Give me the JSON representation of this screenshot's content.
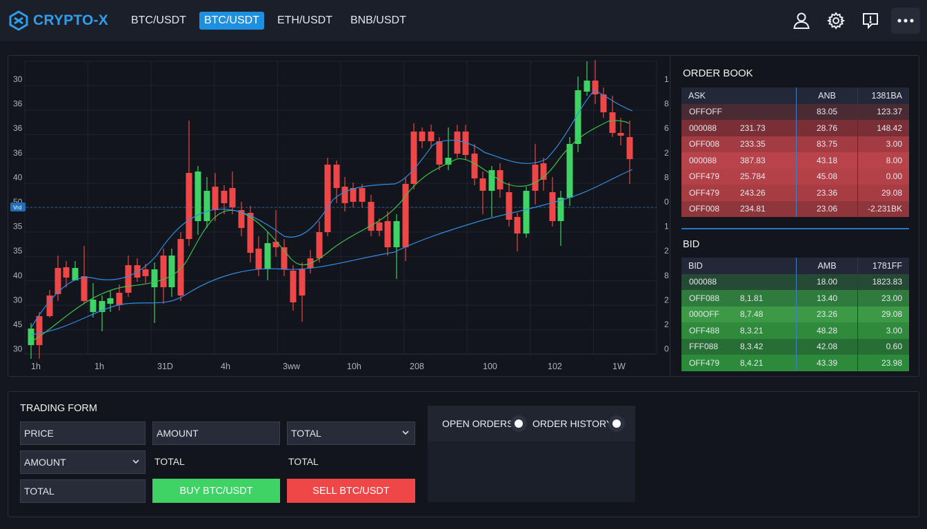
{
  "app": {
    "title": "CRYPTO-X"
  },
  "pairs": [
    "BTC/USDT",
    "BTC/USDT",
    "ETH/USDT",
    "BNB/USDT"
  ],
  "active_pair_index": 1,
  "toolbar_icons": [
    "user-icon",
    "gear-icon",
    "chat-icon",
    "more-icon"
  ],
  "chart": {
    "left_axis": [
      "30",
      "36",
      "36",
      "36",
      "40",
      "50",
      "35",
      "35",
      "40",
      "30",
      "45",
      "30"
    ],
    "right_axis": [
      "1",
      "8",
      "6",
      "2",
      "8",
      "0",
      "1",
      "2",
      "8",
      "2",
      "2",
      "0"
    ],
    "x_axis": [
      "1h",
      "1h",
      "31D",
      "4h",
      "3ww",
      "10h",
      "208",
      "100",
      "102",
      "1W"
    ],
    "price_marker": "Vrd",
    "colors": {
      "up": "#3fd365",
      "down": "#ef4747",
      "ma_blue": "#2f8ee6",
      "ma_green": "#3fc24a"
    }
  },
  "order_book": {
    "title": "ORDER BOOK",
    "ask_header": [
      "ASK",
      "",
      "ANB",
      "1381BA"
    ],
    "asks": [
      [
        "OFFOFF",
        "",
        "83.05",
        "123.37"
      ],
      [
        "000088",
        "231.73",
        "28.76",
        "148.42"
      ],
      [
        "OFF008",
        "233.35",
        "83.75",
        "3.00"
      ],
      [
        "000088",
        "387.83",
        "43.18",
        "8.00"
      ],
      [
        "OFF479",
        "25.784",
        "45.08",
        "0.00"
      ],
      [
        "OFF479",
        "243.26",
        "23.36",
        "29.08"
      ],
      [
        "OFF008",
        "234.81",
        "23.06",
        "-2.231BK"
      ]
    ],
    "bid_label": "BID",
    "bid_header": [
      "BID",
      "",
      "AMB",
      "1781FF"
    ],
    "bids": [
      [
        "000088",
        "",
        "18.00",
        "1823.83"
      ],
      [
        "OFF088",
        "8,1.81",
        "13.40",
        "23.00"
      ],
      [
        "000OFF",
        "8,7.48",
        "23.26",
        "29.08"
      ],
      [
        "OFF488",
        "8,3.21",
        "48.28",
        "3.00"
      ],
      [
        "FFF088",
        "8,3.42",
        "42.08",
        "0.60"
      ],
      [
        "OFF479",
        "8,4.21",
        "43.39",
        "23.98"
      ]
    ]
  },
  "trading_form": {
    "title": "TRADING FORM",
    "price_placeholder": "PRICE",
    "amount_placeholder": "AMOUNT",
    "total_select": "TOTAL",
    "amount_select": "AMOUNT",
    "total_label_1": "TOTAL",
    "total_label_2": "TOTAL",
    "total_placeholder": "TOTAL",
    "buy_label": "BUY BTC/USDT",
    "sell_label": "SELL BTC/USDT"
  },
  "orders": {
    "open_orders_label": "OPEN ORDERS",
    "order_history_label": "ORDER HISTORY"
  }
}
